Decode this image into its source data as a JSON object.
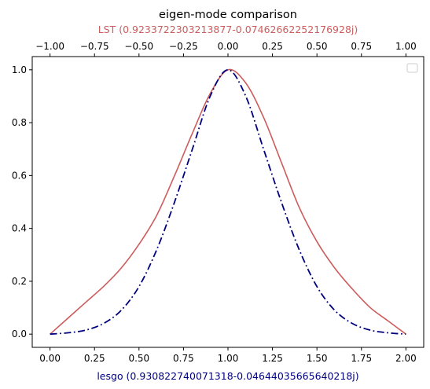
{
  "chart_data": {
    "type": "line",
    "title": "eigen-mode comparison",
    "xlabel": "lesgo (0.930822740071318-0.0464403566564021​8j)",
    "x2label": "LST (0.9233722303213877-0.07462662252176928j)",
    "ylabel": "",
    "xlim": [
      -0.1,
      2.1
    ],
    "x2lim": [
      -1.1,
      1.1
    ],
    "ylim": [
      -0.05,
      1.05
    ],
    "xticks": [
      "0.00",
      "0.25",
      "0.50",
      "0.75",
      "1.00",
      "1.25",
      "1.50",
      "1.75",
      "2.00"
    ],
    "x2ticks": [
      "−1.00",
      "−0.75",
      "−0.50",
      "−0.25",
      "0.00",
      "0.25",
      "0.50",
      "0.75",
      "1.00"
    ],
    "yticks": [
      "0.0",
      "0.2",
      "0.4",
      "0.6",
      "0.8",
      "1.0"
    ],
    "legend": "top-right",
    "grid": false,
    "colors": {
      "lesgo": "#00007f",
      "lst": "#cd5c5c",
      "xlabel": "#00007f",
      "x2label": "#cd5c5c"
    },
    "series": [
      {
        "axis": "bottom",
        "style": "dashdot",
        "x": [
          0.0,
          0.1,
          0.2,
          0.3,
          0.4,
          0.5,
          0.6,
          0.7,
          0.8,
          0.9,
          1.0,
          1.1,
          1.2,
          1.3,
          1.4,
          1.5,
          1.6,
          1.7,
          1.8,
          1.9,
          2.0
        ],
        "y": [
          0.0,
          0.005,
          0.015,
          0.04,
          0.09,
          0.18,
          0.32,
          0.5,
          0.7,
          0.9,
          1.0,
          0.9,
          0.7,
          0.5,
          0.32,
          0.18,
          0.09,
          0.04,
          0.015,
          0.005,
          0.0
        ]
      },
      {
        "axis": "top",
        "style": "solid",
        "x": [
          -1.0,
          -0.9,
          -0.8,
          -0.7,
          -0.6,
          -0.5,
          -0.4,
          -0.3,
          -0.2,
          -0.1,
          0.0,
          0.1,
          0.2,
          0.3,
          0.4,
          0.5,
          0.6,
          0.7,
          0.8,
          0.9,
          1.0
        ],
        "y": [
          0.0,
          0.06,
          0.12,
          0.18,
          0.25,
          0.34,
          0.45,
          0.6,
          0.76,
          0.91,
          1.0,
          0.95,
          0.82,
          0.65,
          0.48,
          0.35,
          0.25,
          0.17,
          0.1,
          0.05,
          0.0
        ]
      }
    ]
  }
}
